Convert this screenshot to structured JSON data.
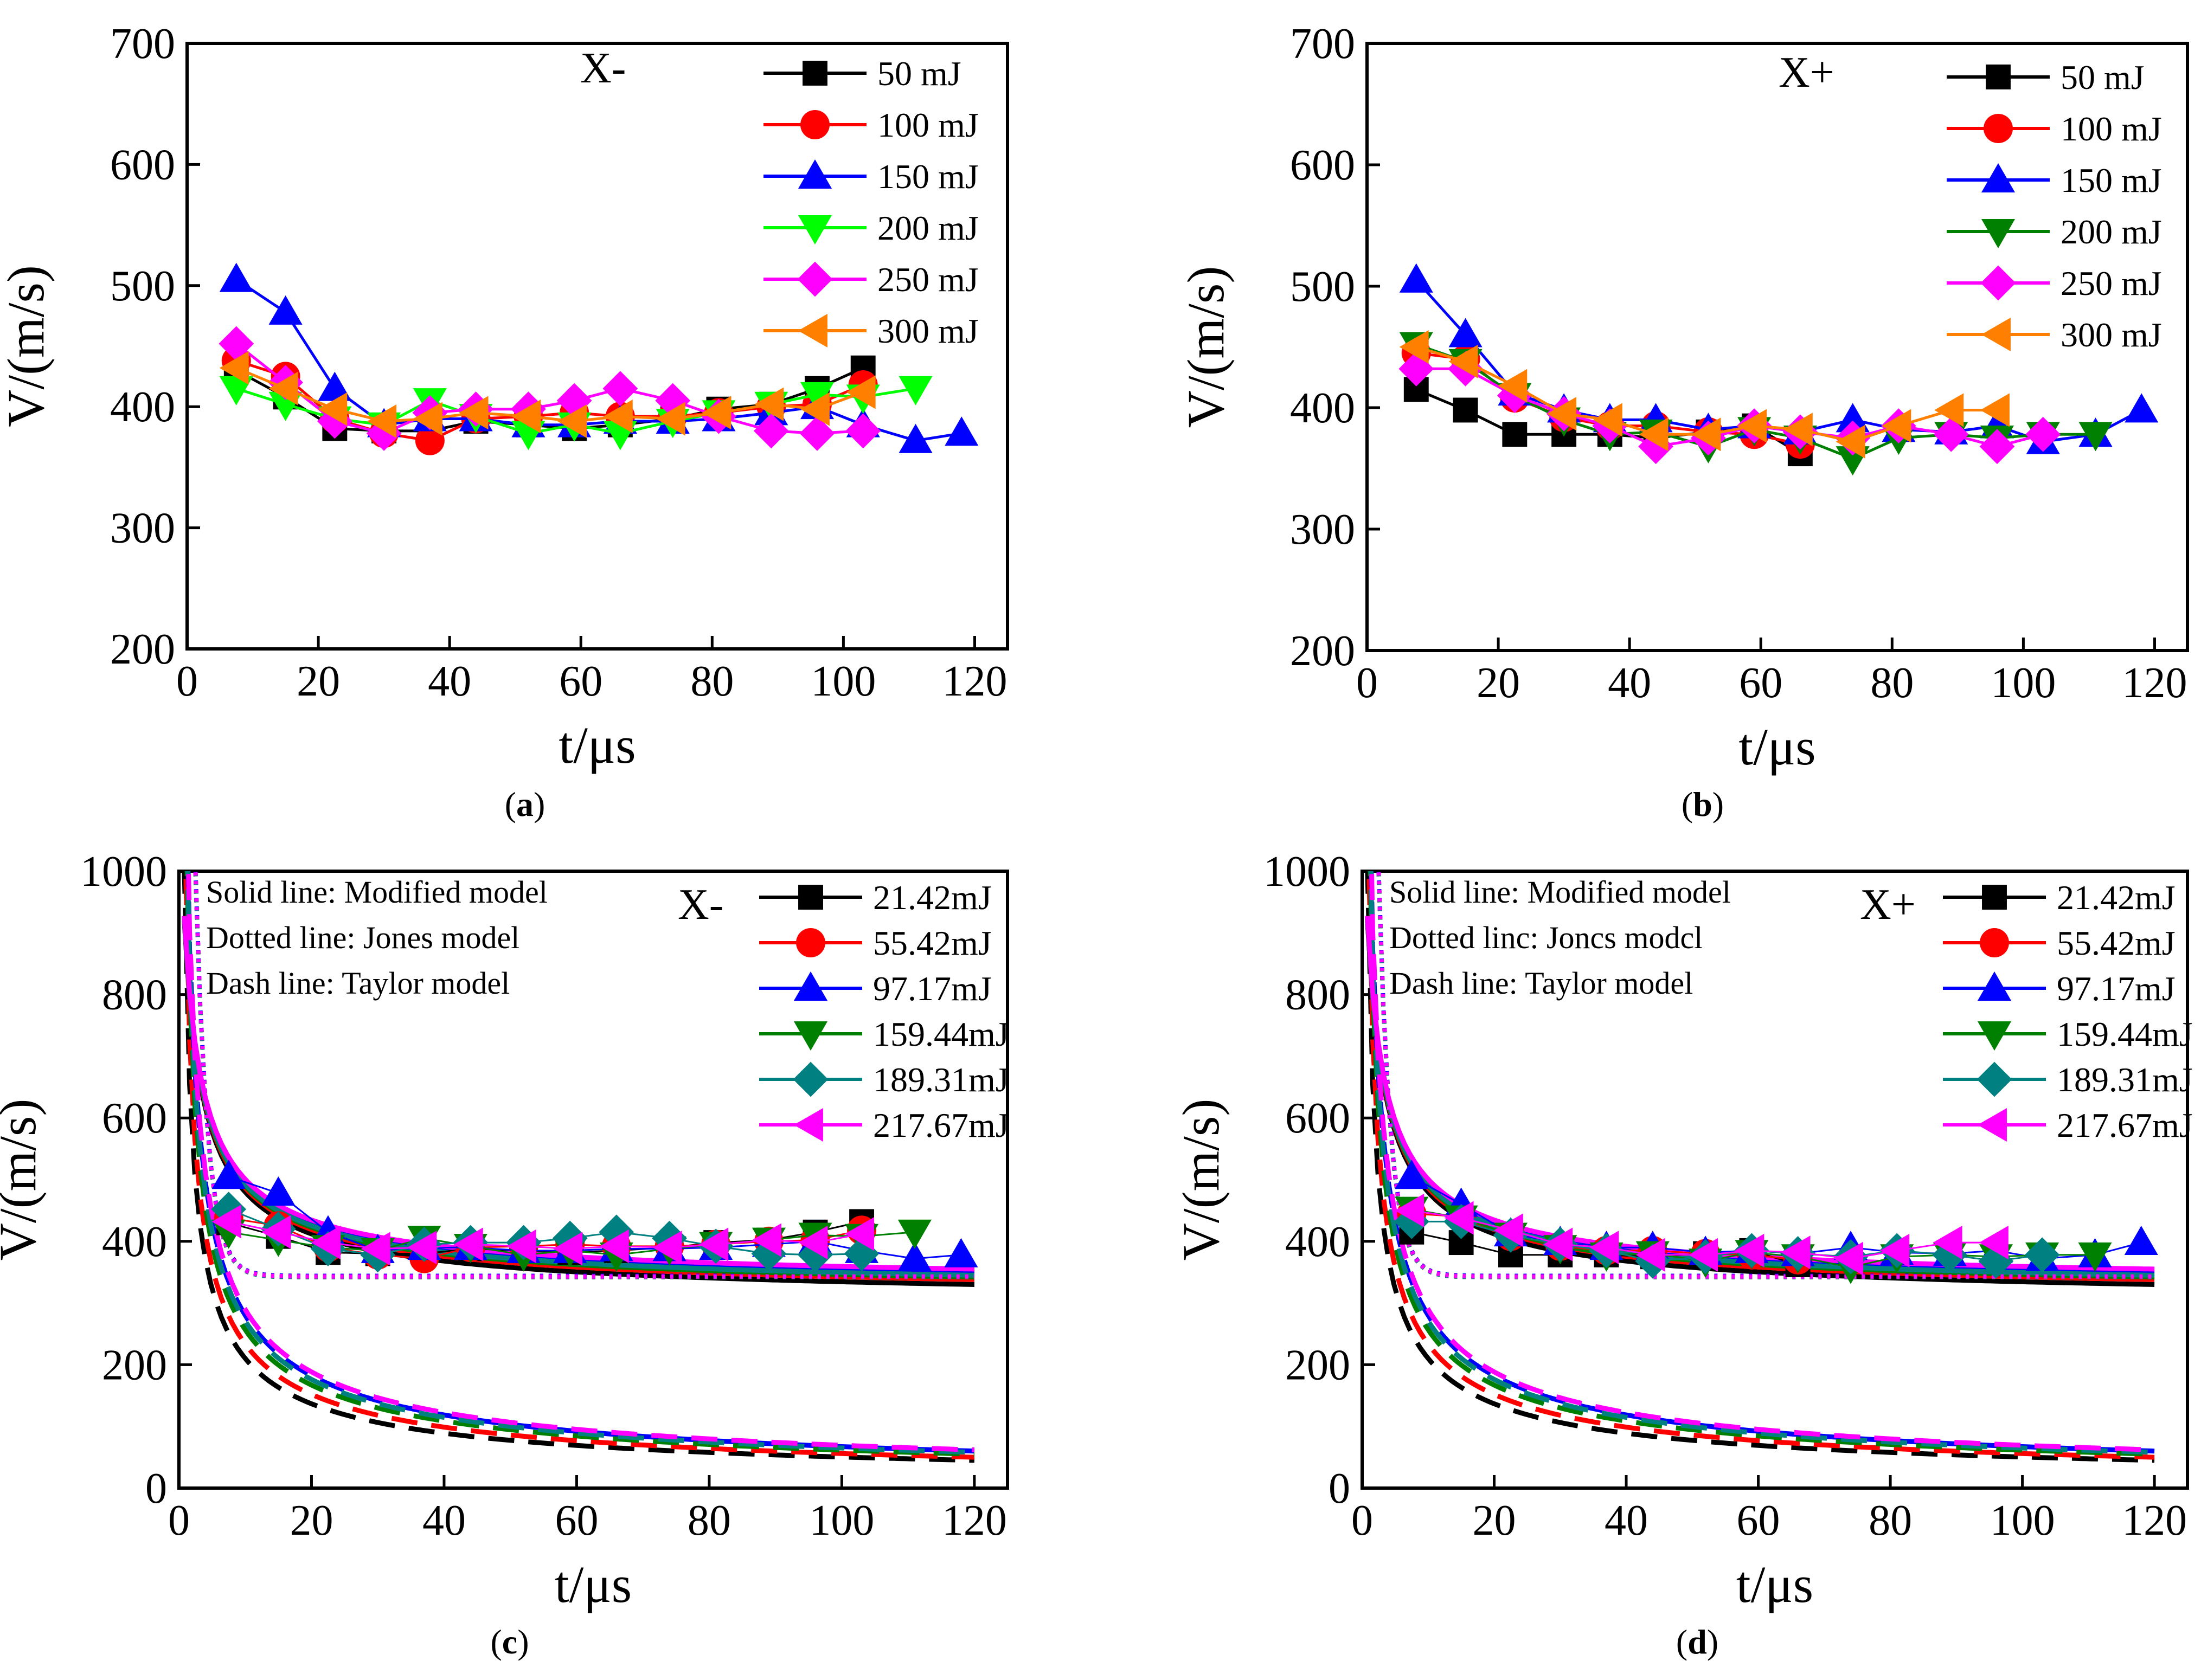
{
  "figure": {
    "panels": [
      {
        "caption": {
          "open": "(",
          "letter": "a",
          "close": ")"
        },
        "tag": "X-",
        "notes": []
      },
      {
        "caption": {
          "open": "(",
          "letter": "b",
          "close": ")"
        },
        "tag": "X+",
        "notes": []
      },
      {
        "caption": {
          "open": "(",
          "letter": "c",
          "close": ")"
        },
        "tag": "X-",
        "notes": [
          "Solid line:  Modified model",
          "Dotted line:  Jones model",
          "Dash line:  Taylor model"
        ]
      },
      {
        "caption": {
          "open": "(",
          "letter": "d",
          "close": ")"
        },
        "tag": "X+",
        "notes": [
          "Solid line:  Modified model",
          "Dotted linc:  Joncs modcl",
          "Dash line:  Taylor model"
        ]
      }
    ]
  },
  "chart_data": [
    {
      "type": "line",
      "panel": "a",
      "title": "X-",
      "xlabel": "t/μs",
      "ylabel": "V/(m/s)",
      "xlim": [
        0,
        125
      ],
      "ylim": [
        200,
        700
      ],
      "xticks": [
        0,
        20,
        40,
        60,
        80,
        100,
        120
      ],
      "yticks": [
        200,
        300,
        400,
        500,
        600,
        700
      ],
      "legend_position": "top-right",
      "series": [
        {
          "name": "50  mJ",
          "color": "#000000",
          "marker": "square",
          "x": [
            7.5,
            15,
            22.5,
            30,
            37,
            44,
            52,
            59,
            66,
            74,
            81,
            89,
            96,
            103
          ],
          "y": [
            430,
            408,
            382,
            380,
            380,
            388,
            385,
            382,
            385,
            390,
            398,
            402,
            415,
            432
          ]
        },
        {
          "name": "100 mJ",
          "color": "#ff0000",
          "marker": "circle",
          "x": [
            7.5,
            15,
            22.5,
            30,
            37,
            44,
            52,
            59,
            66,
            74,
            81,
            89,
            96,
            103
          ],
          "y": [
            438,
            425,
            390,
            378,
            372,
            390,
            392,
            395,
            392,
            392,
            395,
            400,
            402,
            418
          ]
        },
        {
          "name": "150 mJ",
          "color": "#0000ff",
          "marker": "triangle-up",
          "x": [
            7.5,
            15,
            22.5,
            30,
            37,
            44,
            52,
            59,
            66,
            74,
            81,
            89,
            96,
            103,
            111,
            118
          ],
          "y": [
            505,
            478,
            415,
            385,
            390,
            390,
            385,
            385,
            388,
            388,
            390,
            395,
            400,
            385,
            372,
            378
          ]
        },
        {
          "name": "200 mJ",
          "color": "#00ff00",
          "marker": "triangle-down",
          "x": [
            7.5,
            15,
            22.5,
            30,
            37,
            44,
            52,
            59,
            66,
            74,
            81,
            89,
            96,
            103,
            111
          ],
          "y": [
            415,
            402,
            390,
            385,
            405,
            392,
            378,
            385,
            378,
            388,
            395,
            402,
            410,
            408,
            415
          ]
        },
        {
          "name": "250 mJ",
          "color": "#ff00ff",
          "marker": "diamond",
          "x": [
            7.5,
            15,
            22.5,
            30,
            37,
            44,
            52,
            59,
            66,
            74,
            81,
            89,
            96,
            103
          ],
          "y": [
            452,
            420,
            388,
            378,
            395,
            398,
            398,
            405,
            415,
            405,
            392,
            380,
            378,
            380
          ]
        },
        {
          "name": "300 mJ",
          "color": "#ff8000",
          "marker": "triangle-left",
          "x": [
            7.5,
            15,
            22.5,
            30,
            37,
            44,
            52,
            59,
            66,
            74,
            81,
            89,
            96,
            103
          ],
          "y": [
            432,
            415,
            398,
            388,
            390,
            395,
            392,
            388,
            392,
            390,
            395,
            402,
            398,
            412
          ]
        }
      ]
    },
    {
      "type": "line",
      "panel": "b",
      "title": "X+",
      "xlabel": "t/μs",
      "ylabel": "V/(m/s)",
      "xlim": [
        0,
        125
      ],
      "ylim": [
        200,
        700
      ],
      "xticks": [
        0,
        20,
        40,
        60,
        80,
        100,
        120
      ],
      "yticks": [
        200,
        300,
        400,
        500,
        600,
        700
      ],
      "legend_position": "top-right",
      "series": [
        {
          "name": "50  mJ",
          "color": "#000000",
          "marker": "square",
          "x": [
            7.5,
            15,
            22.5,
            30,
            37,
            44,
            52,
            59,
            66
          ],
          "y": [
            415,
            398,
            378,
            378,
            378,
            375,
            380,
            385,
            362
          ]
        },
        {
          "name": "100 mJ",
          "color": "#ff0000",
          "marker": "circle",
          "x": [
            7.5,
            15,
            22.5,
            30,
            37,
            44,
            52,
            59,
            66
          ],
          "y": [
            445,
            440,
            408,
            392,
            385,
            385,
            380,
            378,
            370
          ]
        },
        {
          "name": "150 mJ",
          "color": "#0000ff",
          "marker": "triangle-up",
          "x": [
            7.5,
            15,
            22.5,
            30,
            37,
            44,
            52,
            59,
            66,
            74,
            81,
            89,
            96,
            103,
            111,
            118
          ],
          "y": [
            505,
            460,
            412,
            398,
            390,
            390,
            382,
            385,
            380,
            390,
            382,
            380,
            385,
            372,
            378,
            398
          ]
        },
        {
          "name": "200 mJ",
          "color": "#008000",
          "marker": "triangle-down",
          "x": [
            7.5,
            15,
            22.5,
            30,
            37,
            44,
            52,
            59,
            66,
            74,
            81,
            89,
            96,
            103,
            111
          ],
          "y": [
            452,
            438,
            410,
            390,
            378,
            380,
            368,
            382,
            375,
            358,
            375,
            378,
            375,
            378,
            378
          ]
        },
        {
          "name": "250 mJ",
          "color": "#ff00ff",
          "marker": "diamond",
          "x": [
            7.5,
            15,
            22.5,
            30,
            37,
            44,
            52,
            59,
            66,
            74,
            81,
            89,
            96,
            103
          ],
          "y": [
            432,
            432,
            410,
            395,
            385,
            368,
            375,
            385,
            380,
            375,
            385,
            378,
            368,
            378
          ]
        },
        {
          "name": "300 mJ",
          "color": "#ff8000",
          "marker": "triangle-left",
          "x": [
            7.5,
            15,
            22.5,
            30,
            37,
            44,
            52,
            59,
            66,
            74,
            81,
            89,
            96
          ],
          "y": [
            450,
            438,
            418,
            395,
            390,
            378,
            378,
            385,
            382,
            372,
            385,
            398,
            398
          ]
        }
      ]
    },
    {
      "type": "line",
      "panel": "c",
      "title": "X-",
      "xlabel": "t/μs",
      "ylabel": "V/(m/s)",
      "xlim": [
        0,
        125
      ],
      "ylim": [
        0,
        1000
      ],
      "xticks": [
        0,
        20,
        40,
        60,
        80,
        100,
        120
      ],
      "yticks": [
        0,
        200,
        400,
        600,
        800,
        1000
      ],
      "legend_position": "top-right",
      "series": [
        {
          "name": "21.42mJ",
          "color": "#000000",
          "marker": "square",
          "x": [
            7.5,
            15,
            22.5,
            30,
            37,
            44,
            52,
            59,
            66,
            74,
            81,
            89,
            96,
            103
          ],
          "y": [
            430,
            408,
            382,
            380,
            380,
            388,
            385,
            382,
            385,
            390,
            398,
            402,
            415,
            432
          ],
          "model_tail": {
            "modified": 330,
            "jones": 342,
            "taylor": 45
          }
        },
        {
          "name": "55.42mJ",
          "color": "#ff0000",
          "marker": "circle",
          "x": [
            7.5,
            15,
            22.5,
            30,
            37,
            44,
            52,
            59,
            66,
            74,
            81,
            89,
            96,
            103
          ],
          "y": [
            438,
            425,
            390,
            378,
            372,
            390,
            392,
            395,
            392,
            392,
            395,
            400,
            402,
            418
          ],
          "model_tail": {
            "modified": 338,
            "jones": 342,
            "taylor": 50
          }
        },
        {
          "name": "97.17mJ",
          "color": "#0000ff",
          "marker": "triangle-up",
          "x": [
            7.5,
            15,
            22.5,
            30,
            37,
            44,
            52,
            59,
            66,
            74,
            81,
            89,
            96,
            103,
            111,
            118
          ],
          "y": [
            505,
            478,
            415,
            385,
            390,
            390,
            385,
            385,
            388,
            388,
            390,
            395,
            400,
            385,
            372,
            378
          ],
          "model_tail": {
            "modified": 350,
            "jones": 344,
            "taylor": 60
          }
        },
        {
          "name": "159.44mJ",
          "color": "#008000",
          "marker": "triangle-down",
          "x": [
            7.5,
            15,
            22.5,
            30,
            37,
            44,
            52,
            59,
            66,
            74,
            81,
            89,
            96,
            103,
            111
          ],
          "y": [
            415,
            402,
            390,
            385,
            405,
            392,
            378,
            385,
            378,
            388,
            395,
            402,
            410,
            408,
            415
          ],
          "model_tail": {
            "modified": 342,
            "jones": 342,
            "taylor": 55
          }
        },
        {
          "name": "189.31mJ",
          "color": "#008080",
          "marker": "diamond",
          "x": [
            7.5,
            15,
            22.5,
            30,
            37,
            44,
            52,
            59,
            66,
            74,
            81,
            89,
            96,
            103
          ],
          "y": [
            452,
            420,
            388,
            378,
            395,
            398,
            398,
            405,
            415,
            405,
            392,
            380,
            378,
            380
          ],
          "model_tail": {
            "modified": 345,
            "jones": 342,
            "taylor": 58
          }
        },
        {
          "name": "217.67mJ",
          "color": "#ff00ff",
          "marker": "triangle-left",
          "x": [
            7.5,
            15,
            22.5,
            30,
            37,
            44,
            52,
            59,
            66,
            74,
            81,
            89,
            96,
            103
          ],
          "y": [
            432,
            415,
            398,
            388,
            390,
            395,
            392,
            388,
            392,
            390,
            395,
            402,
            398,
            412
          ],
          "model_tail": {
            "modified": 355,
            "jones": 343,
            "taylor": 62
          }
        }
      ]
    },
    {
      "type": "line",
      "panel": "d",
      "title": "X+",
      "xlabel": "t/μs",
      "ylabel": "V/(m/s)",
      "xlim": [
        0,
        125
      ],
      "ylim": [
        0,
        1000
      ],
      "xticks": [
        0,
        20,
        40,
        60,
        80,
        100,
        120
      ],
      "yticks": [
        0,
        200,
        400,
        600,
        800,
        1000
      ],
      "legend_position": "top-right",
      "series": [
        {
          "name": "21.42mJ",
          "color": "#000000",
          "marker": "square",
          "x": [
            7.5,
            15,
            22.5,
            30,
            37,
            44,
            52,
            59,
            66
          ],
          "y": [
            415,
            398,
            378,
            378,
            378,
            375,
            380,
            385,
            362
          ],
          "model_tail": {
            "modified": 330,
            "jones": 342,
            "taylor": 45
          }
        },
        {
          "name": "55.42mJ",
          "color": "#ff0000",
          "marker": "circle",
          "x": [
            7.5,
            15,
            22.5,
            30,
            37,
            44,
            52,
            59,
            66
          ],
          "y": [
            445,
            440,
            408,
            392,
            385,
            385,
            380,
            378,
            370
          ],
          "model_tail": {
            "modified": 338,
            "jones": 342,
            "taylor": 50
          }
        },
        {
          "name": "97.17mJ",
          "color": "#0000ff",
          "marker": "triangle-up",
          "x": [
            7.5,
            15,
            22.5,
            30,
            37,
            44,
            52,
            59,
            66,
            74,
            81,
            89,
            96,
            103,
            111,
            118
          ],
          "y": [
            505,
            460,
            412,
            398,
            390,
            390,
            382,
            385,
            380,
            390,
            382,
            380,
            385,
            372,
            378,
            398
          ],
          "model_tail": {
            "modified": 350,
            "jones": 344,
            "taylor": 60
          }
        },
        {
          "name": "159.44mJ",
          "color": "#008000",
          "marker": "triangle-down",
          "x": [
            7.5,
            15,
            22.5,
            30,
            37,
            44,
            52,
            59,
            66,
            74,
            81,
            89,
            96,
            103,
            111
          ],
          "y": [
            452,
            438,
            410,
            390,
            378,
            380,
            368,
            382,
            375,
            358,
            375,
            378,
            375,
            378,
            378
          ],
          "model_tail": {
            "modified": 342,
            "jones": 342,
            "taylor": 55
          }
        },
        {
          "name": "189.31mJ",
          "color": "#008080",
          "marker": "diamond",
          "x": [
            7.5,
            15,
            22.5,
            30,
            37,
            44,
            52,
            59,
            66,
            74,
            81,
            89,
            96,
            103
          ],
          "y": [
            432,
            432,
            410,
            395,
            385,
            368,
            375,
            385,
            380,
            375,
            385,
            378,
            368,
            378
          ],
          "model_tail": {
            "modified": 345,
            "jones": 342,
            "taylor": 58
          }
        },
        {
          "name": "217.67mJ",
          "color": "#ff00ff",
          "marker": "triangle-left",
          "x": [
            7.5,
            15,
            22.5,
            30,
            37,
            44,
            52,
            59,
            66,
            74,
            81,
            89,
            96
          ],
          "y": [
            450,
            438,
            418,
            395,
            390,
            378,
            378,
            385,
            382,
            372,
            385,
            398,
            398
          ],
          "model_tail": {
            "modified": 355,
            "jones": 343,
            "taylor": 62
          }
        }
      ]
    }
  ]
}
